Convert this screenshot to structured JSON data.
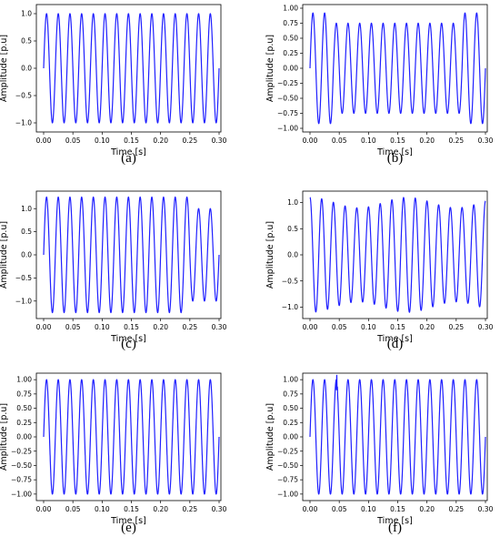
{
  "chart_data": [
    {
      "type": "line",
      "panel_label": "(a)",
      "xlabel": "Time [s]",
      "ylabel": "Amplitude [p.u]",
      "xlim": [
        0,
        0.3
      ],
      "ylim": [
        -1.1,
        1.1
      ],
      "xticks": [
        "0.00",
        "0.05",
        "0.10",
        "0.15",
        "0.20",
        "0.25",
        "0.30"
      ],
      "yticks": [
        "−1.0",
        "−0.5",
        "0.0",
        "0.5",
        "1.0"
      ],
      "grid": false,
      "color": "#1f1fff",
      "series": [
        {
          "waveform": "sine",
          "frequency_hz": 50,
          "amplitude": 1.0,
          "t_range": [
            0,
            0.3
          ]
        }
      ]
    },
    {
      "type": "line",
      "panel_label": "(b)",
      "xlabel": "Time [s]",
      "ylabel": "Amplitude [p.u]",
      "xlim": [
        0,
        0.3
      ],
      "ylim": [
        -1.0,
        1.0
      ],
      "xticks": [
        "0.00",
        "0.05",
        "0.10",
        "0.15",
        "0.20",
        "0.25",
        "0.30"
      ],
      "yticks": [
        "−1.00",
        "−0.75",
        "−0.50",
        "−0.25",
        "0.00",
        "0.25",
        "0.50",
        "0.75",
        "1.00"
      ],
      "grid": false,
      "color": "#1f1fff",
      "series": [
        {
          "waveform": "sine",
          "frequency_hz": 50,
          "amplitude": 0.92,
          "t_range": [
            0,
            0.3
          ],
          "segments": [
            {
              "t_start": 0.04,
              "t_end": 0.26,
              "amplitude": 0.75
            }
          ]
        }
      ]
    },
    {
      "type": "line",
      "panel_label": "(c)",
      "xlabel": "Time [s]",
      "ylabel": "Amplitude [p.u]",
      "xlim": [
        0,
        0.3
      ],
      "ylim": [
        -1.3,
        1.3
      ],
      "xticks": [
        "0.00",
        "0.05",
        "0.10",
        "0.15",
        "0.20",
        "0.25",
        "0.30"
      ],
      "yticks": [
        "−1.0",
        "−0.5",
        "0.0",
        "0.5",
        "1.0"
      ],
      "grid": false,
      "color": "#1f1fff",
      "series": [
        {
          "waveform": "sine",
          "frequency_hz": 50,
          "amplitude": 1.25,
          "t_range": [
            0,
            0.3
          ],
          "segments": [
            {
              "t_start": 0.25,
              "t_end": 0.3,
              "amplitude": 1.0
            }
          ]
        }
      ]
    },
    {
      "type": "line",
      "panel_label": "(d)",
      "xlabel": "Time [s]",
      "ylabel": "Amplitude [p.u]",
      "xlim": [
        0,
        0.3
      ],
      "ylim": [
        -1.15,
        1.15
      ],
      "xticks": [
        "0.00",
        "0.05",
        "0.10",
        "0.15",
        "0.20",
        "0.25",
        "0.30"
      ],
      "yticks": [
        "−1.0",
        "−0.5",
        "0.0",
        "0.5",
        "1.0"
      ],
      "grid": false,
      "color": "#1f1fff",
      "series": [
        {
          "waveform": "amplitude-modulated-sine",
          "frequency_hz": 50,
          "amplitude": 1.0,
          "modulation_depth": 0.1,
          "modulation_frequency_hz": 6,
          "phase": "cosine",
          "t_range": [
            0,
            0.3
          ]
        }
      ]
    },
    {
      "type": "line",
      "panel_label": "(e)",
      "xlabel": "Time [s]",
      "ylabel": "Amplitude [p.u]",
      "xlim": [
        0,
        0.3
      ],
      "ylim": [
        -1.05,
        1.05
      ],
      "xticks": [
        "0.00",
        "0.05",
        "0.10",
        "0.15",
        "0.20",
        "0.25",
        "0.30"
      ],
      "yticks": [
        "−1.00",
        "−0.75",
        "−0.50",
        "−0.25",
        "0.00",
        "0.25",
        "0.50",
        "0.75",
        "1.00"
      ],
      "grid": false,
      "color": "#1f1fff",
      "series": [
        {
          "waveform": "notched-sine",
          "frequency_hz": 50,
          "amplitude": 1.0,
          "notch_level": 0.35,
          "t_range": [
            0,
            0.3
          ]
        }
      ]
    },
    {
      "type": "line",
      "panel_label": "(f)",
      "xlabel": "Time [s]",
      "ylabel": "Amplitude [p.u]",
      "xlim": [
        0,
        0.3
      ],
      "ylim": [
        -1.05,
        1.05
      ],
      "xticks": [
        "0.00",
        "0.05",
        "0.10",
        "0.15",
        "0.20",
        "0.25",
        "0.30"
      ],
      "yticks": [
        "−1.00",
        "−0.75",
        "−0.50",
        "−0.25",
        "0.00",
        "0.25",
        "0.50",
        "0.75",
        "1.00"
      ],
      "grid": false,
      "color": "#1f1fff",
      "series": [
        {
          "waveform": "sine-with-transient",
          "frequency_hz": 50,
          "amplitude": 1.0,
          "transient_at_s": 0.045,
          "t_range": [
            0,
            0.3
          ]
        }
      ]
    }
  ]
}
